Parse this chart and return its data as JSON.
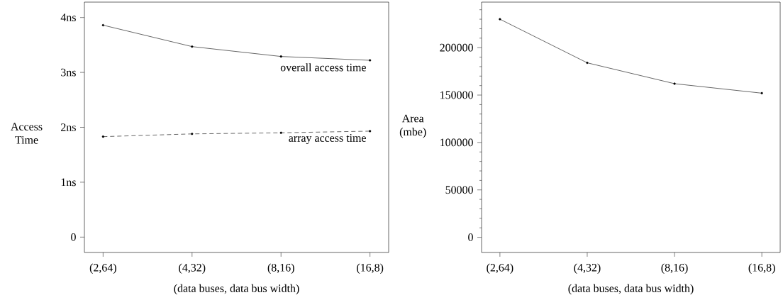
{
  "chart_data": [
    {
      "type": "line",
      "categories": [
        "(2,64)",
        "(4,32)",
        "(8,16)",
        "(16,8)"
      ],
      "xlabel": "(data buses, data bus width)",
      "ylabel": "Access Time",
      "ylim": [
        -0.28,
        4.28
      ],
      "yticks": [
        {
          "value": 0,
          "label": "0"
        },
        {
          "value": 1,
          "label": "1ns"
        },
        {
          "value": 2,
          "label": "2ns"
        },
        {
          "value": 3,
          "label": "3ns"
        },
        {
          "value": 4,
          "label": "4ns"
        }
      ],
      "marker": "circle",
      "series": [
        {
          "name": "overall access time",
          "color": "#000000",
          "line_style": "solid",
          "values": [
            3.86,
            3.47,
            3.29,
            3.22
          ]
        },
        {
          "name": "array access time",
          "color": "#000000",
          "line_style": "dashed",
          "values": [
            1.83,
            1.88,
            1.9,
            1.93
          ]
        }
      ]
    },
    {
      "type": "line",
      "categories": [
        "(2,64)",
        "(4,32)",
        "(8,16)",
        "(16,8)"
      ],
      "xlabel": "(data buses, data bus width)",
      "ylabel": "Area (mbe)",
      "ylim": [
        -16000,
        248000
      ],
      "yticks": [
        0,
        {
          "value": 10000,
          "label": null
        },
        {
          "value": 20000,
          "label": null
        },
        {
          "value": 30000,
          "label": null
        },
        {
          "value": 40000,
          "label": null
        },
        50000,
        {
          "value": 60000,
          "label": null
        },
        {
          "value": 70000,
          "label": null
        },
        {
          "value": 80000,
          "label": null
        },
        {
          "value": 90000,
          "label": null
        },
        100000,
        {
          "value": 110000,
          "label": null
        },
        {
          "value": 120000,
          "label": null
        },
        {
          "value": 130000,
          "label": null
        },
        {
          "value": 140000,
          "label": null
        },
        150000,
        {
          "value": 160000,
          "label": null
        },
        {
          "value": 170000,
          "label": null
        },
        {
          "value": 180000,
          "label": null
        },
        {
          "value": 190000,
          "label": null
        },
        200000,
        {
          "value": 210000,
          "label": null
        },
        {
          "value": 220000,
          "label": null
        },
        {
          "value": 230000,
          "label": null
        },
        {
          "value": 240000,
          "label": null
        }
      ],
      "marker": "circle",
      "series": [
        {
          "color": "#000000",
          "line_style": "solid",
          "values": [
            230000,
            184000,
            162000,
            152000
          ]
        }
      ]
    }
  ]
}
